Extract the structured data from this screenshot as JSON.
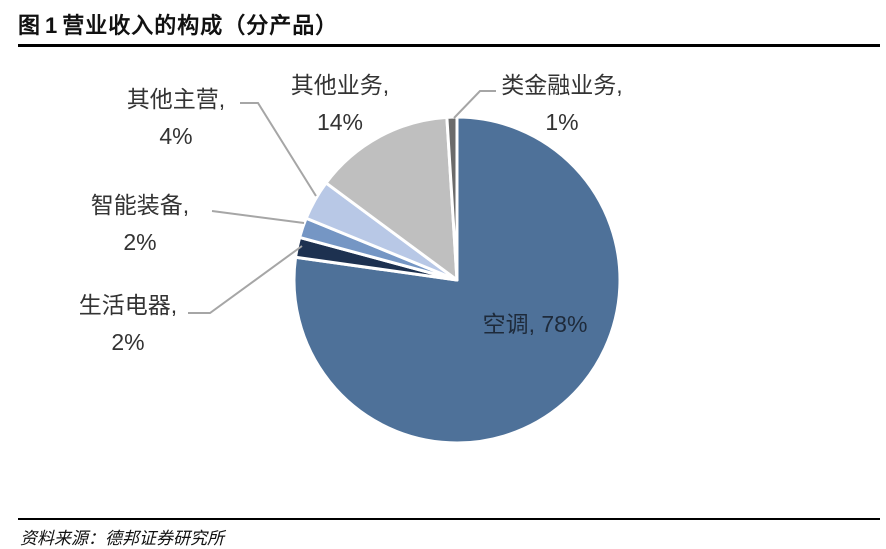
{
  "title": {
    "prefix": "图",
    "number": "1",
    "text": "营业收入的构成（分产品）"
  },
  "source": "资料来源：德邦证券研究所",
  "chart_data": {
    "type": "pie",
    "slices": [
      {
        "name": "空调",
        "value": 78,
        "label": "78%",
        "color": "#4e7199"
      },
      {
        "name": "生活电器",
        "value": 2,
        "label": "2%",
        "color": "#1d3150"
      },
      {
        "name": "智能装备",
        "value": 2,
        "label": "2%",
        "color": "#7596c4"
      },
      {
        "name": "其他主营",
        "value": 4,
        "label": "4%",
        "color": "#b8c8e6"
      },
      {
        "name": "其他业务",
        "value": 14,
        "label": "14%",
        "color": "#bfbfbf"
      },
      {
        "name": "类金融业务",
        "value": 1,
        "label": "1%",
        "color": "#6b6b6b"
      }
    ]
  }
}
